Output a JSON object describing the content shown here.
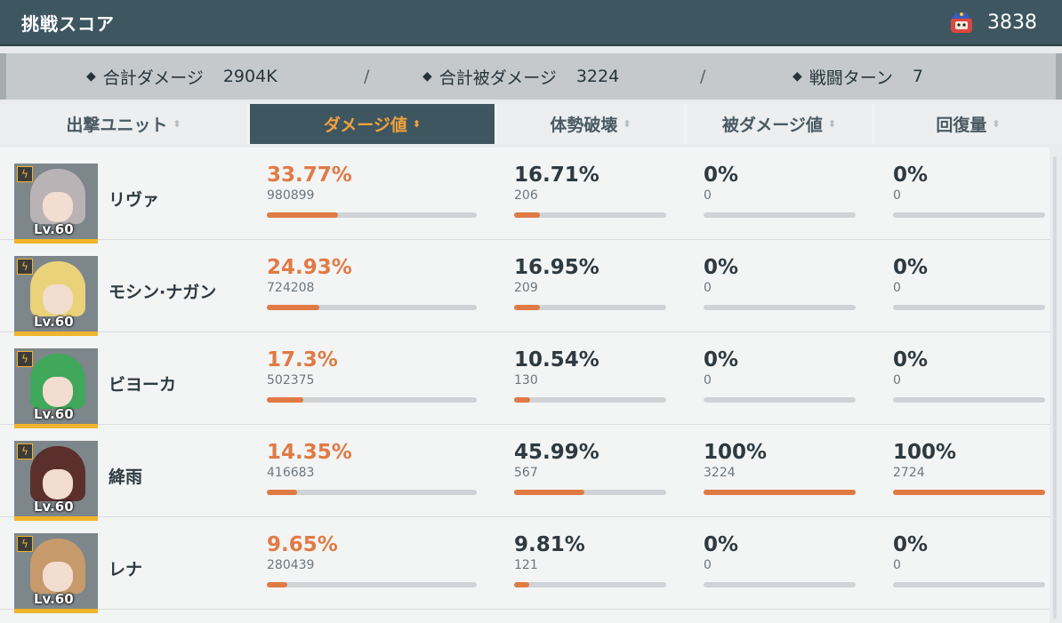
{
  "header": {
    "title": "挑戦スコア",
    "score": "3838",
    "score_icon": "mascot-icon"
  },
  "summary": {
    "total_damage_label": "合計ダメージ",
    "total_damage_value": "2904K",
    "total_taken_label": "合計被ダメージ",
    "total_taken_value": "3224",
    "turns_label": "戦闘ターン",
    "turns_value": "7",
    "separator": "/"
  },
  "columns": [
    {
      "label": "出撃ユニット",
      "active": false
    },
    {
      "label": "ダメージ値",
      "active": true
    },
    {
      "label": "体勢破壊",
      "active": false
    },
    {
      "label": "被ダメージ値",
      "active": false
    },
    {
      "label": "回復量",
      "active": false
    }
  ],
  "sort_glyph": "⬍",
  "level_prefix": "Lv.",
  "colors": {
    "accent": "#e07a44",
    "header_bg": "#3e5660",
    "active_tab_text": "#f3a23b",
    "level_underline": "#f0b42a"
  },
  "rows": [
    {
      "name": "リヴァ",
      "level": "Lv.60",
      "hair": "#b9b3b6",
      "damage": {
        "pct": "33.77%",
        "value": "980899",
        "fill": 0.3377
      },
      "break": {
        "pct": "16.71%",
        "value": "206",
        "fill": 0.1671
      },
      "taken": {
        "pct": "0%",
        "value": "0",
        "fill": 0
      },
      "heal": {
        "pct": "0%",
        "value": "0",
        "fill": 0
      }
    },
    {
      "name": "モシン·ナガン",
      "level": "Lv.60",
      "hair": "#e9d27a",
      "damage": {
        "pct": "24.93%",
        "value": "724208",
        "fill": 0.2493
      },
      "break": {
        "pct": "16.95%",
        "value": "209",
        "fill": 0.1695
      },
      "taken": {
        "pct": "0%",
        "value": "0",
        "fill": 0
      },
      "heal": {
        "pct": "0%",
        "value": "0",
        "fill": 0
      }
    },
    {
      "name": "ビヨーカ",
      "level": "Lv.60",
      "hair": "#3fa85a",
      "damage": {
        "pct": "17.3%",
        "value": "502375",
        "fill": 0.173
      },
      "break": {
        "pct": "10.54%",
        "value": "130",
        "fill": 0.1054
      },
      "taken": {
        "pct": "0%",
        "value": "0",
        "fill": 0
      },
      "heal": {
        "pct": "0%",
        "value": "0",
        "fill": 0
      }
    },
    {
      "name": "絳雨",
      "level": "Lv.60",
      "hair": "#5b2f2c",
      "damage": {
        "pct": "14.35%",
        "value": "416683",
        "fill": 0.1435
      },
      "break": {
        "pct": "45.99%",
        "value": "567",
        "fill": 0.4599
      },
      "taken": {
        "pct": "100%",
        "value": "3224",
        "fill": 1
      },
      "heal": {
        "pct": "100%",
        "value": "2724",
        "fill": 1
      }
    },
    {
      "name": "レナ",
      "level": "Lv.60",
      "hair": "#c79a6c",
      "damage": {
        "pct": "9.65%",
        "value": "280439",
        "fill": 0.0965
      },
      "break": {
        "pct": "9.81%",
        "value": "121",
        "fill": 0.0981
      },
      "taken": {
        "pct": "0%",
        "value": "0",
        "fill": 0
      },
      "heal": {
        "pct": "0%",
        "value": "0",
        "fill": 0
      }
    }
  ]
}
